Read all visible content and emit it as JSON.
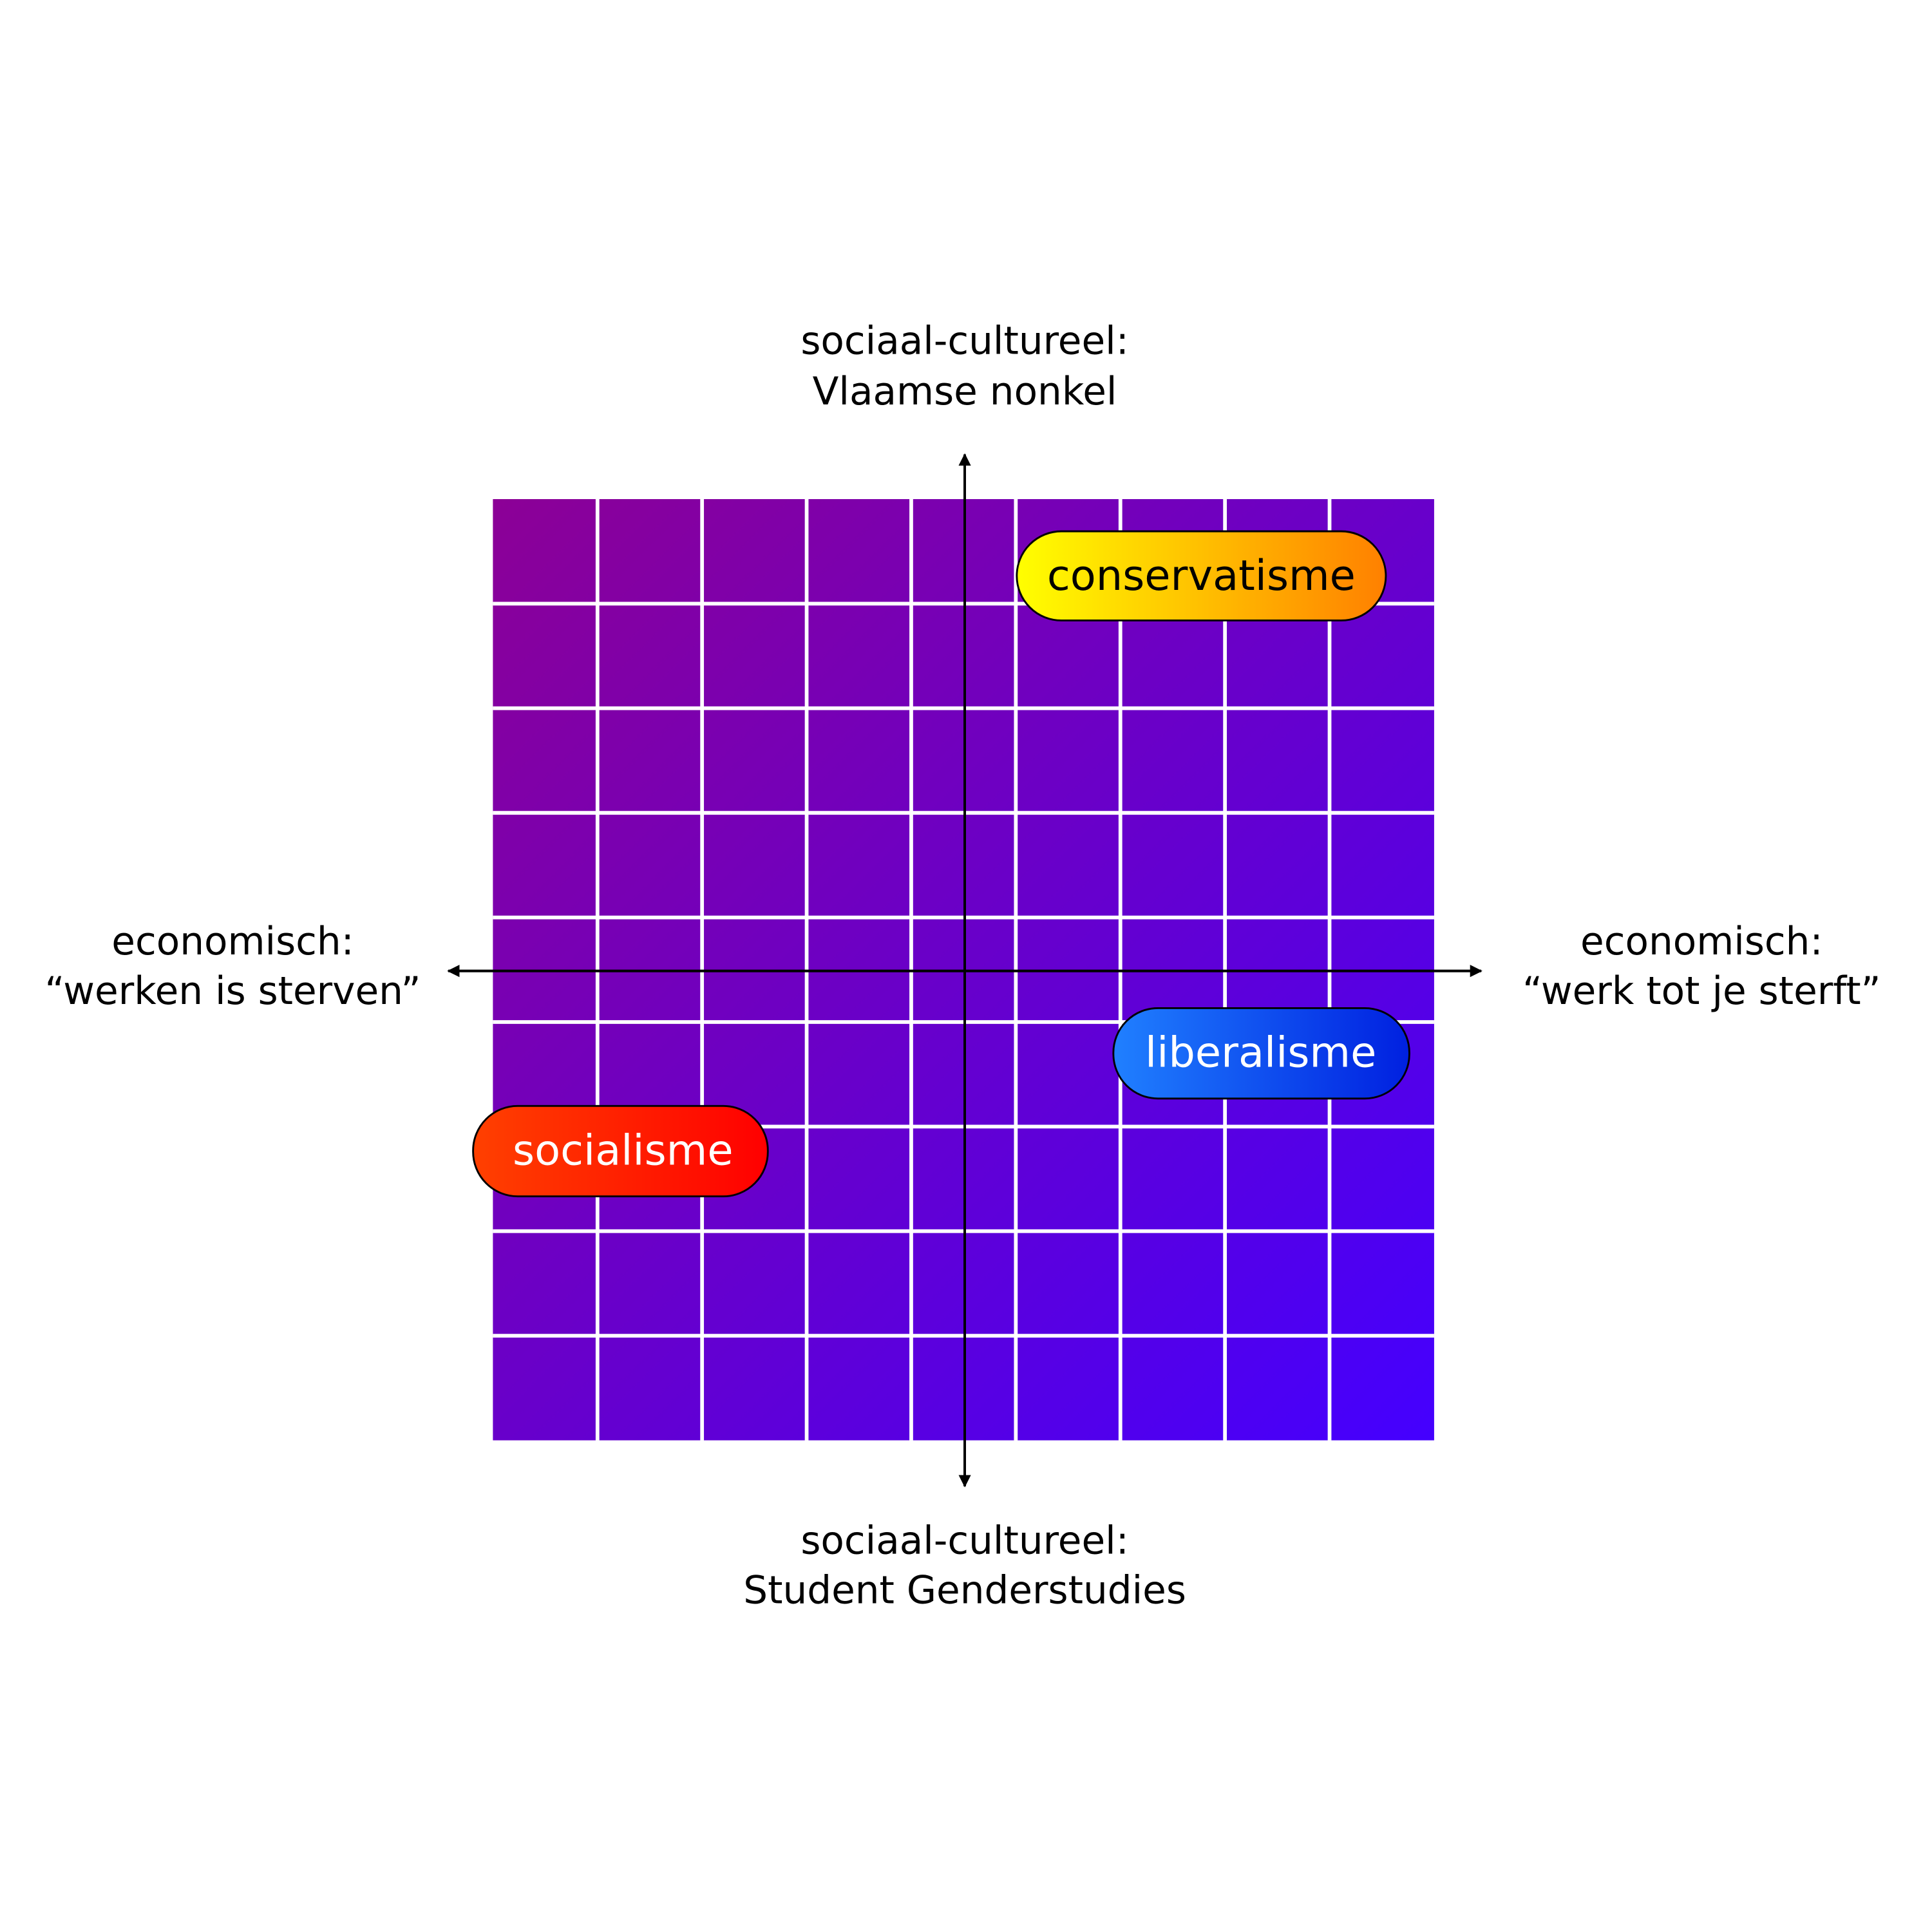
{
  "axes": {
    "top": {
      "lines": [
        "sociaal-cultureel:",
        "Vlaamse nonkel"
      ]
    },
    "bottom": {
      "lines": [
        "sociaal-cultureel:",
        "Student Genderstudies"
      ]
    },
    "left": {
      "lines": [
        "economisch:",
        "“werken is sterven”"
      ]
    },
    "right": {
      "lines": [
        "economisch:",
        "“werk tot je sterft”"
      ]
    }
  },
  "nodes": [
    {
      "label": "conservatisme"
    },
    {
      "label": "liberalisme"
    },
    {
      "label": "socialisme"
    }
  ]
}
